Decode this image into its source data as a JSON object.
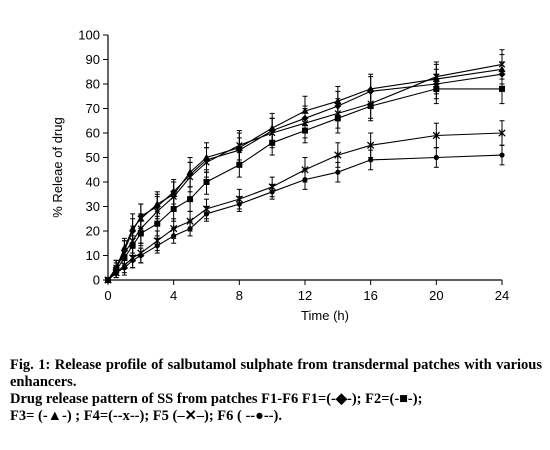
{
  "chart_data": {
    "type": "line",
    "xlabel": "Time (h)",
    "ylabel": "% Releae of drug",
    "xlim": [
      0,
      24
    ],
    "ylim": [
      0,
      100
    ],
    "xticks": [
      0,
      4,
      8,
      12,
      16,
      20,
      24
    ],
    "yticks": [
      0,
      10,
      20,
      30,
      40,
      50,
      60,
      70,
      80,
      90,
      100
    ],
    "grid": false,
    "legend": "none",
    "x": [
      0,
      0.5,
      1,
      1.5,
      2,
      3,
      4,
      5,
      6,
      8,
      10,
      12,
      14,
      16,
      20,
      24
    ],
    "series": [
      {
        "marker": "diamond",
        "values": [
          0,
          5,
          12,
          20,
          26,
          30,
          36,
          43,
          49,
          53,
          61,
          66,
          71,
          77,
          80,
          84
        ],
        "errors": [
          0,
          3,
          4,
          5,
          5,
          5,
          5,
          5,
          5,
          5,
          5,
          5,
          6,
          6,
          6,
          5
        ]
      },
      {
        "marker": "square",
        "values": [
          0,
          4,
          9,
          14,
          19,
          23,
          29,
          33,
          40,
          47,
          56,
          61,
          66,
          71,
          78,
          78
        ],
        "errors": [
          0,
          3,
          4,
          4,
          5,
          5,
          5,
          5,
          5,
          5,
          5,
          5,
          6,
          6,
          6,
          6
        ]
      },
      {
        "marker": "triangle",
        "values": [
          0,
          5,
          13,
          21,
          25,
          31,
          35,
          44,
          50,
          54,
          62,
          69,
          73,
          78,
          82,
          86
        ],
        "errors": [
          0,
          3,
          4,
          6,
          6,
          5,
          5,
          6,
          6,
          6,
          6,
          6,
          6,
          6,
          6,
          6
        ]
      },
      {
        "marker": "x",
        "values": [
          0,
          5,
          11,
          16,
          21,
          28,
          34,
          42,
          48,
          55,
          60,
          64,
          68,
          72,
          83,
          88
        ],
        "errors": [
          0,
          3,
          5,
          6,
          6,
          6,
          6,
          6,
          6,
          6,
          6,
          6,
          6,
          6,
          6,
          6
        ]
      },
      {
        "marker": "cross",
        "values": [
          0,
          3,
          6,
          9,
          11,
          16,
          21,
          24,
          29,
          33,
          38,
          45,
          51,
          55,
          59,
          60
        ],
        "errors": [
          0,
          2,
          3,
          4,
          4,
          4,
          4,
          4,
          4,
          4,
          4,
          5,
          5,
          5,
          5,
          5
        ]
      },
      {
        "marker": "circle",
        "values": [
          0,
          3,
          5,
          8,
          10,
          14,
          18,
          21,
          27,
          31,
          36,
          41,
          44,
          49,
          50,
          51
        ],
        "errors": [
          0,
          2,
          3,
          3,
          3,
          3,
          3,
          3,
          3,
          3,
          3,
          4,
          4,
          4,
          4,
          4
        ]
      }
    ]
  },
  "caption": {
    "fig_label": "Fig. 1:",
    "title": "Release profile of salbutamol sulphate from transdermal patches with various enhancers.",
    "line2": "Drug release pattern of SS from patches  F1-F6 F1=(-◆-); F2=(-■-);",
    "line3": "F3= (-▲-) ; F4=(--x--);  F5 (–✕–);  F6 ( --●--)."
  }
}
